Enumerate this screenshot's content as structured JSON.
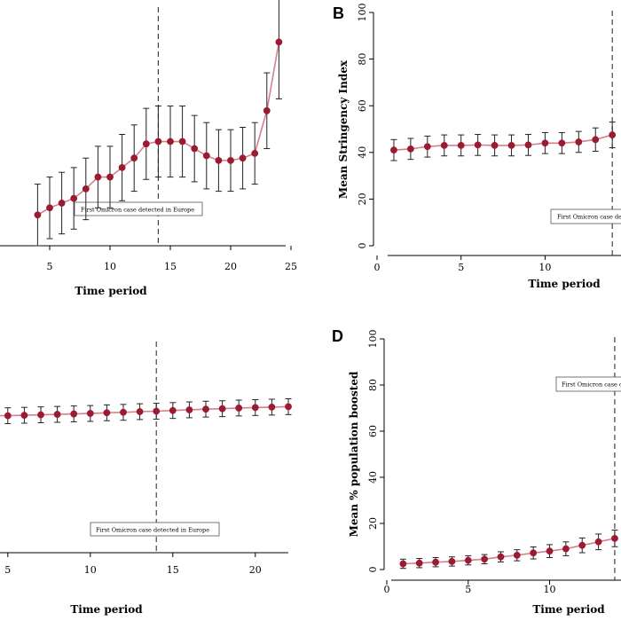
{
  "chart_data": [
    {
      "id": "A",
      "panel_label": "",
      "type": "line",
      "xlabel": "Time period",
      "ylabel": "",
      "xlim": [
        0,
        25
      ],
      "xticks": [
        5,
        10,
        15,
        20,
        25
      ],
      "yticks": [],
      "ylim": [
        0,
        100
      ],
      "x": [
        4,
        5,
        6,
        7,
        8,
        9,
        10,
        11,
        12,
        13,
        14,
        15,
        16,
        17,
        18,
        19,
        20,
        21,
        22,
        23,
        24
      ],
      "values": [
        13,
        16,
        18,
        20,
        24,
        29,
        29,
        33,
        37,
        43,
        44,
        44,
        44,
        41,
        38,
        36,
        36,
        37,
        39,
        57,
        86
      ],
      "err": [
        13,
        13,
        13,
        13,
        13,
        13,
        13,
        14,
        14,
        15,
        15,
        15,
        15,
        14,
        14,
        13,
        13,
        13,
        13,
        16,
        24
      ],
      "vline_x": 14,
      "annotation": "First Omicron case detected in Europe"
    },
    {
      "id": "B",
      "panel_label": "B",
      "type": "line",
      "xlabel": "Time period",
      "ylabel": "Mean Stringency Index",
      "xlim": [
        0,
        17
      ],
      "xticks": [
        0,
        5,
        10
      ],
      "yticks": [
        0,
        20,
        40,
        60,
        80,
        100
      ],
      "ylim": [
        0,
        100
      ],
      "x": [
        1,
        2,
        3,
        4,
        5,
        6,
        7,
        8,
        9,
        10,
        11,
        12,
        13,
        14
      ],
      "values": [
        41,
        41.5,
        42.5,
        43,
        43,
        43.2,
        43,
        43,
        43.2,
        44,
        44,
        44.5,
        45.5,
        47.5
      ],
      "err": [
        4.5,
        4.5,
        4.5,
        4.5,
        4.5,
        4.5,
        4.5,
        4.5,
        4.5,
        4.5,
        4.5,
        4.5,
        5,
        5.5
      ],
      "vline_x": 14,
      "annotation": "First Omicron case detected in Europe"
    },
    {
      "id": "C",
      "panel_label": "",
      "type": "line",
      "xlabel": "Time period",
      "ylabel": "",
      "xlim": [
        2,
        22
      ],
      "xticks": [
        5,
        10,
        15,
        20
      ],
      "yticks": [],
      "ylim": [
        0,
        100
      ],
      "x": [
        4,
        5,
        6,
        7,
        8,
        9,
        10,
        11,
        12,
        13,
        14,
        15,
        16,
        17,
        18,
        19,
        20,
        21,
        22
      ],
      "values": [
        68,
        68,
        68.2,
        68.4,
        68.6,
        68.8,
        69,
        69.3,
        69.5,
        69.8,
        70,
        70.3,
        70.6,
        70.9,
        71.1,
        71.4,
        71.6,
        71.8,
        72
      ],
      "err": [
        3.5,
        3.5,
        3.5,
        3.5,
        3.5,
        3.5,
        3.5,
        3.5,
        3.5,
        3.5,
        3.5,
        3.5,
        3.5,
        3.5,
        3.5,
        3.5,
        3.5,
        3.5,
        3.5
      ],
      "vline_x": 14,
      "annotation": "First Omicron case detected in Europe"
    },
    {
      "id": "D",
      "panel_label": "D",
      "type": "line",
      "xlabel": "Time period",
      "ylabel": "Mean % population boosted",
      "xlim": [
        0,
        17
      ],
      "xticks": [
        0,
        5,
        10
      ],
      "yticks": [
        0,
        20,
        40,
        60,
        80,
        100
      ],
      "ylim": [
        0,
        100
      ],
      "x": [
        1,
        2,
        3,
        4,
        5,
        6,
        7,
        8,
        9,
        10,
        11,
        12,
        13,
        14
      ],
      "values": [
        2.5,
        2.8,
        3.2,
        3.5,
        4,
        4.5,
        5.5,
        6.2,
        7.2,
        8,
        9,
        10.5,
        12,
        13.5
      ],
      "err": [
        2,
        2,
        2,
        2,
        2,
        2,
        2.2,
        2.4,
        2.6,
        2.8,
        3,
        3.2,
        3.4,
        3.6
      ],
      "vline_x": 14,
      "annotation": "First Omicron case c"
    }
  ]
}
